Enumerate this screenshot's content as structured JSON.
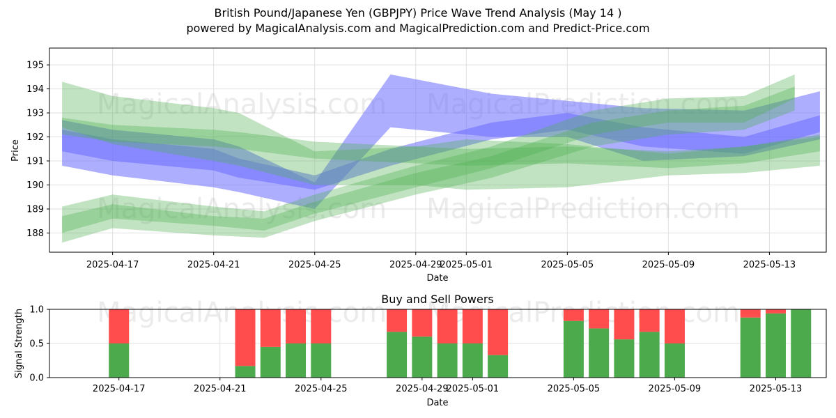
{
  "header": {
    "title": "British Pound/Japanese Yen (GBPJPY) Price Wave Trend Analysis (May 14 )",
    "subtitle": "powered by MagicalAnalysis.com and MagicalPrediction.com and Predict-Price.com"
  },
  "watermarks": [
    "MagicalAnalysis.com",
    "MagicalPrediction.com"
  ],
  "colors": {
    "buy": "#4caa4c",
    "sell": "#ff4d4d",
    "green_band": "#4caf50",
    "blue_band": "#6b6bff",
    "grid": "#e0e0e0"
  },
  "chart_data": [
    {
      "type": "area",
      "title": "",
      "xlabel": "Date",
      "ylabel": "Price",
      "ylim": [
        187.2,
        195.7
      ],
      "xlim": [
        "2025-04-14T12:00",
        "2025-05-15T06:00"
      ],
      "x_ticks": [
        "2025-04-17",
        "2025-04-21",
        "2025-04-25",
        "2025-04-29",
        "2025-05-01",
        "2025-05-05",
        "2025-05-09",
        "2025-05-13"
      ],
      "y_ticks": [
        188,
        189,
        190,
        191,
        192,
        193,
        194,
        195
      ],
      "grid": true,
      "series": [
        {
          "color": "blue",
          "x": [
            "2025-04-15",
            "2025-04-17",
            "2025-04-21",
            "2025-04-22",
            "2025-04-25",
            "2025-04-28",
            "2025-05-02",
            "2025-05-05",
            "2025-05-08",
            "2025-05-12",
            "2025-05-15"
          ],
          "upper": [
            192.7,
            192.3,
            191.9,
            191.6,
            190.1,
            194.6,
            193.8,
            193.5,
            193.2,
            193.1,
            193.9
          ],
          "lower": [
            190.8,
            190.4,
            189.9,
            189.7,
            189.0,
            192.4,
            192.0,
            192.0,
            191.0,
            191.2,
            191.9
          ]
        },
        {
          "color": "blue",
          "x": [
            "2025-04-15",
            "2025-04-17",
            "2025-04-21",
            "2025-04-22",
            "2025-04-25",
            "2025-04-28",
            "2025-05-02",
            "2025-05-05",
            "2025-05-08",
            "2025-05-12",
            "2025-05-15"
          ],
          "upper": [
            192.3,
            191.9,
            191.5,
            191.1,
            190.4,
            191.5,
            192.6,
            193.0,
            192.4,
            192.0,
            192.9
          ],
          "lower": [
            191.4,
            191.0,
            190.6,
            190.3,
            189.8,
            190.8,
            191.9,
            192.3,
            191.6,
            191.3,
            192.2
          ]
        },
        {
          "color": "green",
          "x": [
            "2025-04-15",
            "2025-04-17",
            "2025-04-21",
            "2025-04-22",
            "2025-04-25",
            "2025-04-29",
            "2025-05-01",
            "2025-05-05",
            "2025-05-09",
            "2025-05-12",
            "2025-05-15"
          ],
          "upper": [
            194.3,
            193.7,
            193.2,
            193.0,
            191.4,
            191.6,
            191.9,
            191.7,
            191.3,
            191.6,
            192.0
          ],
          "lower": [
            192.4,
            191.7,
            191.0,
            190.8,
            190.0,
            190.0,
            189.8,
            189.9,
            190.4,
            190.5,
            190.8
          ]
        },
        {
          "color": "green",
          "x": [
            "2025-04-15",
            "2025-04-17",
            "2025-04-21",
            "2025-04-22",
            "2025-04-25",
            "2025-04-29",
            "2025-05-01",
            "2025-05-05",
            "2025-05-09",
            "2025-05-12",
            "2025-05-15"
          ],
          "upper": [
            192.8,
            192.5,
            192.3,
            192.2,
            191.8,
            191.6,
            191.5,
            191.6,
            191.4,
            191.6,
            192.1
          ],
          "lower": [
            192.1,
            191.8,
            191.6,
            191.5,
            191.1,
            190.9,
            190.8,
            190.9,
            190.7,
            190.9,
            191.4
          ]
        },
        {
          "color": "green",
          "x": [
            "2025-04-15",
            "2025-04-17",
            "2025-04-21",
            "2025-04-23",
            "2025-04-25",
            "2025-04-29",
            "2025-05-02",
            "2025-05-06",
            "2025-05-09",
            "2025-05-12",
            "2025-05-14"
          ],
          "upper": [
            189.1,
            189.6,
            189.1,
            188.9,
            189.6,
            190.8,
            191.6,
            193.1,
            193.6,
            193.7,
            194.6
          ],
          "lower": [
            188.0,
            188.6,
            188.3,
            188.1,
            188.8,
            189.9,
            190.7,
            192.1,
            192.6,
            192.6,
            193.6
          ]
        },
        {
          "color": "green",
          "x": [
            "2025-04-15",
            "2025-04-17",
            "2025-04-21",
            "2025-04-23",
            "2025-04-25",
            "2025-04-29",
            "2025-05-02",
            "2025-05-06",
            "2025-05-09",
            "2025-05-12",
            "2025-05-14"
          ],
          "upper": [
            188.7,
            189.2,
            188.7,
            188.6,
            189.3,
            190.5,
            191.2,
            192.6,
            193.1,
            193.3,
            194.1
          ],
          "lower": [
            187.6,
            188.2,
            187.9,
            187.8,
            188.5,
            189.6,
            190.3,
            191.6,
            192.1,
            192.3,
            193.1
          ]
        }
      ]
    },
    {
      "type": "bar",
      "title": "Buy and Sell Powers",
      "xlabel": "Date",
      "ylabel": "Signal Strength",
      "ylim": [
        0,
        1
      ],
      "y_ticks": [
        "0.0",
        "0.5",
        "1.0"
      ],
      "x_ticks": [
        "2025-04-17",
        "2025-04-21",
        "2025-04-25",
        "2025-04-29",
        "2025-05-01",
        "2025-05-05",
        "2025-05-09",
        "2025-05-13"
      ],
      "categories": [
        "2025-04-17",
        "2025-04-22",
        "2025-04-23",
        "2025-04-24",
        "2025-04-25",
        "2025-04-28",
        "2025-04-29",
        "2025-04-30",
        "2025-05-01",
        "2025-05-02",
        "2025-05-05",
        "2025-05-06",
        "2025-05-07",
        "2025-05-08",
        "2025-05-09",
        "2025-05-12",
        "2025-05-13",
        "2025-05-14"
      ],
      "series": [
        {
          "name": "",
          "color": "#4caa4c",
          "values": [
            0.5,
            0.17,
            0.45,
            0.5,
            0.5,
            0.67,
            0.6,
            0.5,
            0.5,
            0.33,
            0.83,
            0.72,
            0.56,
            0.67,
            0.5,
            0.88,
            0.94,
            1.0
          ]
        },
        {
          "name": "",
          "color": "#ff4d4d",
          "values": [
            0.5,
            0.83,
            0.55,
            0.5,
            0.5,
            0.33,
            0.4,
            0.5,
            0.5,
            0.67,
            0.17,
            0.28,
            0.44,
            0.33,
            0.5,
            0.12,
            0.06,
            0.0
          ]
        }
      ]
    }
  ]
}
